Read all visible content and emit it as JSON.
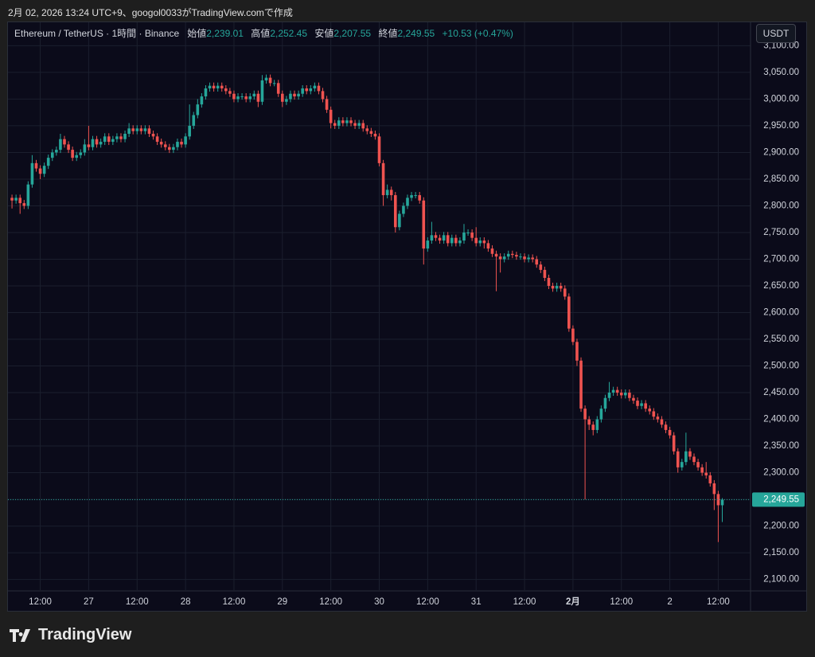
{
  "caption": "2月 02, 2026 13:24 UTC+9、googol0033がTradingView.comで作成",
  "currency": "USDT",
  "brand": "TradingView",
  "header": {
    "symbol": "Ethereum / TetherUS · 1時間 · Binance",
    "open_label": "始値",
    "open": "2,239.01",
    "high_label": "高値",
    "high": "2,252.45",
    "low_label": "安値",
    "low": "2,207.55",
    "close_label": "終値",
    "close": "2,249.55",
    "change": "+10.53 (+0.47%)"
  },
  "chart_data": {
    "type": "candlestick",
    "up_color": "#26a69a",
    "down_color": "#ef5350",
    "grid": true,
    "ylim": [
      2080,
      3120
    ],
    "yticks": [
      {
        "value": 2100,
        "label": "2,100.00"
      },
      {
        "value": 2150,
        "label": "2,150.00"
      },
      {
        "value": 2200,
        "label": "2,200.00"
      },
      {
        "value": 2250,
        "label": "2,250.00"
      },
      {
        "value": 2300,
        "label": "2,300.00"
      },
      {
        "value": 2350,
        "label": "2,350.00"
      },
      {
        "value": 2400,
        "label": "2,400.00"
      },
      {
        "value": 2450,
        "label": "2,450.00"
      },
      {
        "value": 2500,
        "label": "2,500.00"
      },
      {
        "value": 2550,
        "label": "2,550.00"
      },
      {
        "value": 2600,
        "label": "2,600.00"
      },
      {
        "value": 2650,
        "label": "2,650.00"
      },
      {
        "value": 2700,
        "label": "2,700.00"
      },
      {
        "value": 2750,
        "label": "2,750.00"
      },
      {
        "value": 2800,
        "label": "2,800.00"
      },
      {
        "value": 2850,
        "label": "2,850.00"
      },
      {
        "value": 2900,
        "label": "2,900.00"
      },
      {
        "value": 2950,
        "label": "2,950.00"
      },
      {
        "value": 3000,
        "label": "3,000.00"
      },
      {
        "value": 3050,
        "label": "3,050.00"
      },
      {
        "value": 3100,
        "label": "3,100.00"
      }
    ],
    "xlim": [
      -1,
      183
    ],
    "xticks": [
      {
        "value": 7,
        "label": "12:00"
      },
      {
        "value": 19,
        "label": "27"
      },
      {
        "value": 31,
        "label": "12:00"
      },
      {
        "value": 43,
        "label": "28"
      },
      {
        "value": 55,
        "label": "12:00"
      },
      {
        "value": 67,
        "label": "29"
      },
      {
        "value": 79,
        "label": "12:00"
      },
      {
        "value": 91,
        "label": "30"
      },
      {
        "value": 103,
        "label": "12:00"
      },
      {
        "value": 115,
        "label": "31"
      },
      {
        "value": 127,
        "label": "12:00"
      },
      {
        "value": 139,
        "label": "2月"
      },
      {
        "value": 151,
        "label": "12:00"
      },
      {
        "value": 163,
        "label": "2"
      },
      {
        "value": 175,
        "label": "12:00"
      }
    ],
    "last_price": {
      "value": 2249.55,
      "label": "2,249.55"
    },
    "open": [
      2815,
      2810,
      2815,
      2805,
      2800,
      2840,
      2880,
      2870,
      2860,
      2875,
      2890,
      2900,
      2905,
      2925,
      2915,
      2905,
      2890,
      2895,
      2900,
      2915,
      2910,
      2925,
      2915,
      2920,
      2930,
      2920,
      2925,
      2930,
      2925,
      2935,
      2945,
      2940,
      2945,
      2940,
      2945,
      2935,
      2930,
      2920,
      2915,
      2910,
      2905,
      2910,
      2920,
      2915,
      2930,
      2950,
      2970,
      2990,
      3005,
      3020,
      3025,
      3020,
      3025,
      3020,
      3015,
      3010,
      3000,
      3005,
      3005,
      3000,
      3005,
      3010,
      2995,
      3035,
      3040,
      3030,
      3030,
      3010,
      2995,
      3000,
      3010,
      3005,
      3010,
      3020,
      3015,
      3020,
      3025,
      3015,
      3000,
      2980,
      2955,
      2950,
      2960,
      2955,
      2960,
      2955,
      2950,
      2955,
      2945,
      2940,
      2935,
      2930,
      2880,
      2820,
      2830,
      2820,
      2760,
      2785,
      2800,
      2815,
      2820,
      2820,
      2810,
      2720,
      2735,
      2745,
      2740,
      2735,
      2745,
      2730,
      2740,
      2730,
      2735,
      2750,
      2750,
      2740,
      2730,
      2735,
      2730,
      2720,
      2710,
      2705,
      2700,
      2705,
      2710,
      2708,
      2705,
      2705,
      2700,
      2703,
      2700,
      2690,
      2680,
      2665,
      2650,
      2645,
      2650,
      2645,
      2630,
      2570,
      2545,
      2510,
      2420,
      2400,
      2390,
      2380,
      2400,
      2420,
      2440,
      2450,
      2455,
      2450,
      2445,
      2450,
      2440,
      2435,
      2425,
      2430,
      2420,
      2415,
      2405,
      2400,
      2390,
      2380,
      2370,
      2340,
      2310,
      2320,
      2340,
      2330,
      2320,
      2310,
      2300,
      2295,
      2280,
      2260,
      2239.01
    ],
    "high": [
      2821,
      2821,
      2821,
      2811,
      2846,
      2895,
      2886,
      2876,
      2881,
      2896,
      2906,
      2911,
      2935,
      2931,
      2921,
      2911,
      2901,
      2906,
      2925,
      2950,
      2931,
      2931,
      2926,
      2936,
      2936,
      2931,
      2936,
      2936,
      2941,
      2955,
      2951,
      2951,
      2951,
      2951,
      2951,
      2941,
      2936,
      2926,
      2921,
      2916,
      2916,
      2926,
      2926,
      2936,
      2990,
      2976,
      3000,
      3011,
      3026,
      3031,
      3031,
      3031,
      3031,
      3026,
      3021,
      3016,
      3011,
      3011,
      3011,
      3011,
      3016,
      3016,
      3045,
      3046,
      3046,
      3036,
      3036,
      3016,
      3006,
      3016,
      3016,
      3016,
      3026,
      3026,
      3026,
      3031,
      3031,
      3021,
      3006,
      2986,
      2961,
      2966,
      2966,
      2966,
      2966,
      2961,
      2961,
      2961,
      2951,
      2946,
      2941,
      2936,
      2886,
      2840,
      2836,
      2826,
      2791,
      2806,
      2821,
      2826,
      2826,
      2826,
      2816,
      2741,
      2770,
      2751,
      2746,
      2751,
      2751,
      2746,
      2746,
      2741,
      2766,
      2756,
      2756,
      2760,
      2741,
      2741,
      2736,
      2726,
      2716,
      2711,
      2711,
      2716,
      2716,
      2714,
      2711,
      2711,
      2709,
      2709,
      2706,
      2696,
      2686,
      2671,
      2656,
      2656,
      2656,
      2651,
      2636,
      2576,
      2551,
      2516,
      2426,
      2406,
      2396,
      2406,
      2426,
      2446,
      2470,
      2461,
      2461,
      2456,
      2456,
      2456,
      2446,
      2441,
      2436,
      2436,
      2426,
      2421,
      2411,
      2406,
      2396,
      2386,
      2376,
      2346,
      2326,
      2375,
      2346,
      2336,
      2326,
      2316,
      2320,
      2301,
      2286,
      2266,
      2252.45
    ],
    "low": [
      2795,
      2804,
      2785,
      2794,
      2794,
      2834,
      2864,
      2850,
      2854,
      2869,
      2884,
      2894,
      2899,
      2909,
      2899,
      2884,
      2884,
      2889,
      2894,
      2904,
      2904,
      2909,
      2909,
      2914,
      2914,
      2914,
      2919,
      2919,
      2919,
      2929,
      2934,
      2934,
      2934,
      2934,
      2929,
      2924,
      2914,
      2909,
      2904,
      2899,
      2899,
      2904,
      2909,
      2909,
      2924,
      2944,
      2964,
      2984,
      2999,
      3014,
      3014,
      3014,
      3014,
      3009,
      3004,
      2994,
      2994,
      2999,
      2994,
      2994,
      2999,
      2985,
      2989,
      3029,
      3024,
      3024,
      3004,
      2985,
      2989,
      2994,
      2999,
      2999,
      3004,
      3009,
      3009,
      3014,
      3009,
      2994,
      2974,
      2945,
      2944,
      2944,
      2949,
      2949,
      2949,
      2944,
      2944,
      2939,
      2934,
      2929,
      2924,
      2874,
      2800,
      2814,
      2810,
      2750,
      2754,
      2779,
      2794,
      2809,
      2814,
      2804,
      2690,
      2714,
      2729,
      2734,
      2729,
      2729,
      2724,
      2724,
      2724,
      2724,
      2729,
      2744,
      2734,
      2724,
      2724,
      2720,
      2714,
      2704,
      2640,
      2675,
      2694,
      2699,
      2702,
      2699,
      2699,
      2694,
      2694,
      2694,
      2684,
      2674,
      2659,
      2644,
      2639,
      2639,
      2639,
      2624,
      2564,
      2539,
      2500,
      2414,
      2250,
      2380,
      2370,
      2374,
      2394,
      2414,
      2434,
      2444,
      2444,
      2439,
      2439,
      2434,
      2429,
      2419,
      2419,
      2414,
      2409,
      2399,
      2394,
      2384,
      2374,
      2364,
      2334,
      2300,
      2304,
      2314,
      2324,
      2314,
      2304,
      2294,
      2289,
      2274,
      2230,
      2170,
      2207.55
    ],
    "close": [
      2810,
      2815,
      2805,
      2800,
      2840,
      2880,
      2870,
      2860,
      2875,
      2890,
      2900,
      2905,
      2925,
      2915,
      2905,
      2890,
      2895,
      2900,
      2915,
      2910,
      2925,
      2915,
      2920,
      2930,
      2920,
      2925,
      2930,
      2925,
      2935,
      2945,
      2940,
      2945,
      2940,
      2945,
      2935,
      2930,
      2920,
      2915,
      2910,
      2905,
      2910,
      2920,
      2915,
      2930,
      2950,
      2970,
      2990,
      3005,
      3020,
      3025,
      3020,
      3025,
      3020,
      3015,
      3010,
      3000,
      3005,
      3005,
      3000,
      3005,
      3010,
      2995,
      3035,
      3040,
      3030,
      3030,
      3010,
      2995,
      3000,
      3010,
      3005,
      3010,
      3020,
      3015,
      3020,
      3025,
      3015,
      3000,
      2980,
      2955,
      2950,
      2960,
      2955,
      2960,
      2955,
      2950,
      2955,
      2945,
      2940,
      2935,
      2930,
      2880,
      2820,
      2830,
      2820,
      2760,
      2785,
      2800,
      2815,
      2820,
      2820,
      2810,
      2720,
      2735,
      2745,
      2740,
      2735,
      2745,
      2730,
      2740,
      2730,
      2735,
      2750,
      2750,
      2740,
      2730,
      2735,
      2730,
      2720,
      2710,
      2705,
      2700,
      2705,
      2710,
      2708,
      2705,
      2705,
      2700,
      2703,
      2700,
      2690,
      2680,
      2665,
      2650,
      2645,
      2650,
      2645,
      2630,
      2570,
      2545,
      2510,
      2420,
      2400,
      2390,
      2380,
      2400,
      2420,
      2440,
      2450,
      2455,
      2450,
      2445,
      2450,
      2440,
      2435,
      2425,
      2430,
      2420,
      2415,
      2405,
      2400,
      2390,
      2380,
      2370,
      2340,
      2310,
      2320,
      2340,
      2330,
      2320,
      2310,
      2300,
      2295,
      2280,
      2260,
      2239.01,
      2249.55
    ]
  }
}
